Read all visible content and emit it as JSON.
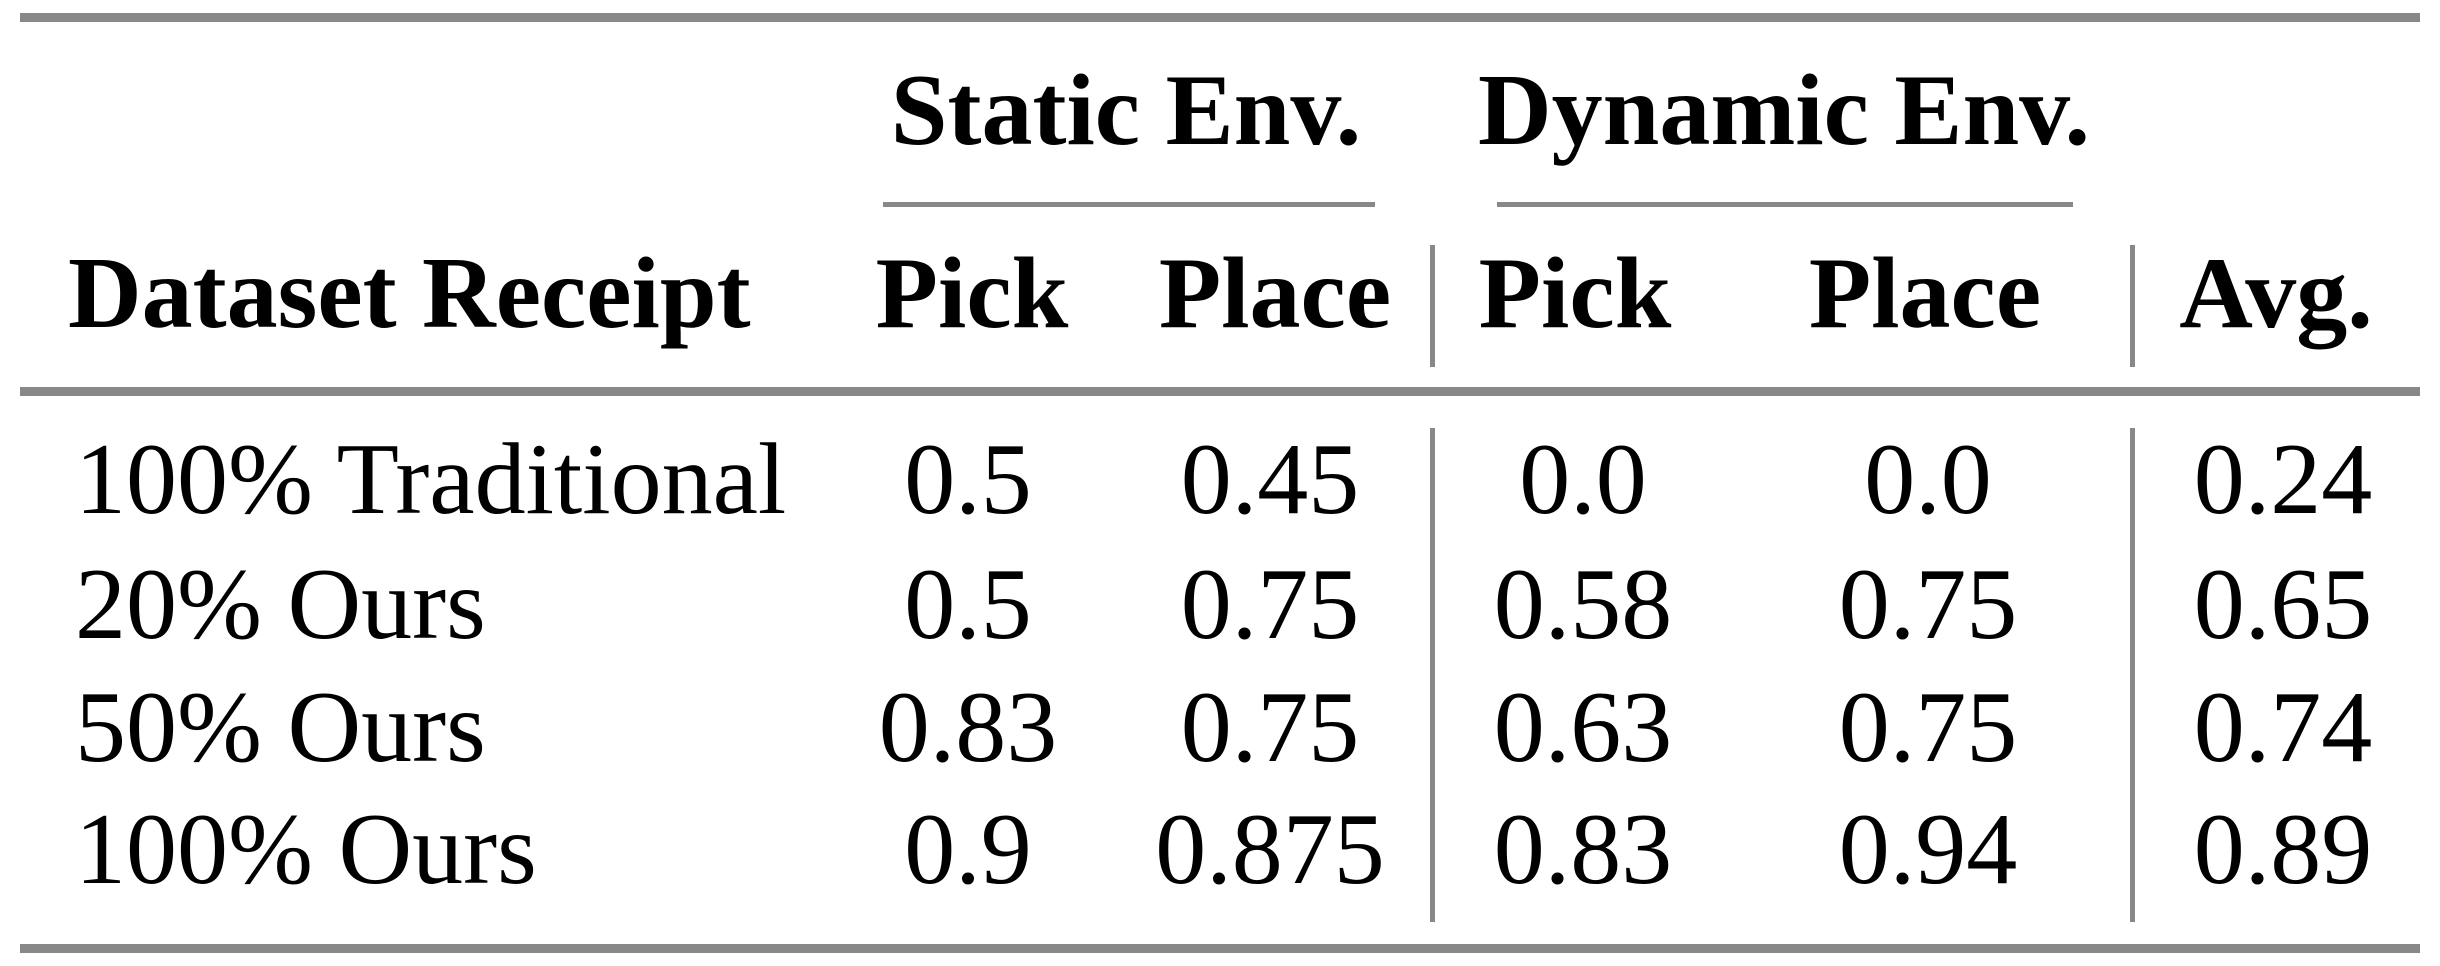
{
  "table": {
    "group_headers": {
      "static": "Static Env.",
      "dynamic": "Dynamic Env."
    },
    "column_headers": {
      "dataset": "Dataset Receipt",
      "static_pick": "Pick",
      "static_place": "Place",
      "dynamic_pick": "Pick",
      "dynamic_place": "Place",
      "avg": "Avg."
    },
    "rows": [
      {
        "label": "100% Traditional",
        "static_pick": "0.5",
        "static_place": "0.45",
        "dynamic_pick": "0.0",
        "dynamic_place": "0.0",
        "avg": "0.24"
      },
      {
        "label": "20% Ours",
        "static_pick": "0.5",
        "static_place": "0.75",
        "dynamic_pick": "0.58",
        "dynamic_place": "0.75",
        "avg": "0.65"
      },
      {
        "label": "50% Ours",
        "static_pick": "0.83",
        "static_place": "0.75",
        "dynamic_pick": "0.63",
        "dynamic_place": "0.75",
        "avg": "0.74"
      },
      {
        "label": "100% Ours",
        "static_pick": "0.9",
        "static_place": "0.875",
        "dynamic_pick": "0.83",
        "dynamic_place": "0.94",
        "avg": "0.89"
      }
    ]
  },
  "colors": {
    "rule_gray": "#888888",
    "text": "#000000",
    "background": "#ffffff"
  },
  "chart_data": {
    "type": "table",
    "title": "",
    "column_groups": [
      "",
      "Static Env.",
      "Static Env.",
      "Dynamic Env.",
      "Dynamic Env.",
      ""
    ],
    "columns": [
      "Dataset Receipt",
      "Pick",
      "Place",
      "Pick",
      "Place",
      "Avg."
    ],
    "rows": [
      [
        "100% Traditional",
        0.5,
        0.45,
        0.0,
        0.0,
        0.24
      ],
      [
        "20% Ours",
        0.5,
        0.75,
        0.58,
        0.75,
        0.65
      ],
      [
        "50% Ours",
        0.83,
        0.75,
        0.63,
        0.75,
        0.74
      ],
      [
        "100% Ours",
        0.9,
        0.875,
        0.83,
        0.94,
        0.89
      ]
    ]
  }
}
